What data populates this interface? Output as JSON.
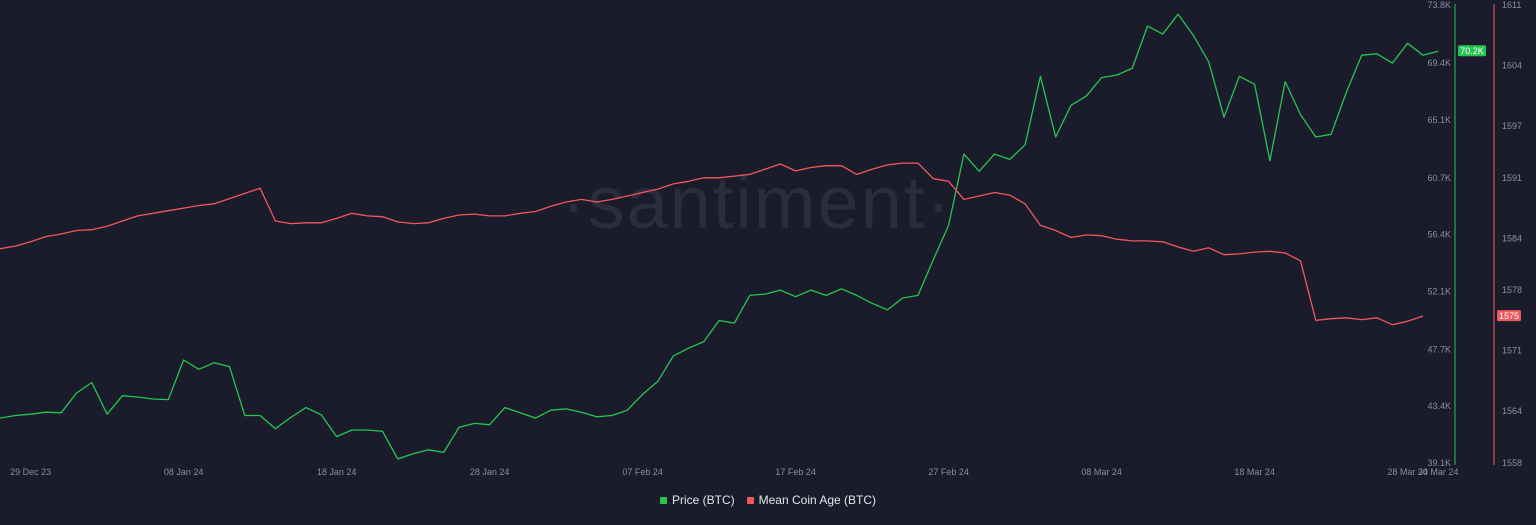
{
  "watermark": "·santiment·",
  "chart_data": {
    "type": "line",
    "x_tick_labels": [
      "29 Dec 23",
      "08 Jan 24",
      "18 Jan 24",
      "28 Jan 24",
      "07 Feb 24",
      "17 Feb 24",
      "27 Feb 24",
      "08 Mar 24",
      "18 Mar 24",
      "28 Mar 24",
      "30 Mar 24"
    ],
    "x_range": [
      "2023-12-27",
      "2024-03-30"
    ],
    "grid": false,
    "legend_position": "bottom-center",
    "series": [
      {
        "name": "Price (BTC)",
        "color": "#26c451",
        "axis": "left",
        "last_value_label": "70.2K",
        "points": [
          [
            "2023-12-27",
            42500
          ],
          [
            "2023-12-28",
            42700
          ],
          [
            "2023-12-29",
            42800
          ],
          [
            "2023-12-30",
            42950
          ],
          [
            "2023-12-31",
            42900
          ],
          [
            "2024-01-01",
            44400
          ],
          [
            "2024-01-02",
            45200
          ],
          [
            "2024-01-03",
            42800
          ],
          [
            "2024-01-04",
            44200
          ],
          [
            "2024-01-05",
            44100
          ],
          [
            "2024-01-06",
            43950
          ],
          [
            "2024-01-07",
            43900
          ],
          [
            "2024-01-08",
            46900
          ],
          [
            "2024-01-09",
            46200
          ],
          [
            "2024-01-10",
            46700
          ],
          [
            "2024-01-11",
            46400
          ],
          [
            "2024-01-12",
            42700
          ],
          [
            "2024-01-13",
            42700
          ],
          [
            "2024-01-14",
            41700
          ],
          [
            "2024-01-15",
            42550
          ],
          [
            "2024-01-16",
            43300
          ],
          [
            "2024-01-17",
            42750
          ],
          [
            "2024-01-18",
            41100
          ],
          [
            "2024-01-19",
            41600
          ],
          [
            "2024-01-20",
            41600
          ],
          [
            "2024-01-21",
            41500
          ],
          [
            "2024-01-22",
            39400
          ],
          [
            "2024-01-23",
            39800
          ],
          [
            "2024-01-24",
            40100
          ],
          [
            "2024-01-25",
            39900
          ],
          [
            "2024-01-26",
            41800
          ],
          [
            "2024-01-27",
            42100
          ],
          [
            "2024-01-28",
            42000
          ],
          [
            "2024-01-29",
            43300
          ],
          [
            "2024-01-30",
            42900
          ],
          [
            "2024-01-31",
            42500
          ],
          [
            "2024-02-01",
            43100
          ],
          [
            "2024-02-02",
            43200
          ],
          [
            "2024-02-03",
            42950
          ],
          [
            "2024-02-04",
            42600
          ],
          [
            "2024-02-05",
            42700
          ],
          [
            "2024-02-06",
            43100
          ],
          [
            "2024-02-07",
            44300
          ],
          [
            "2024-02-08",
            45300
          ],
          [
            "2024-02-09",
            47200
          ],
          [
            "2024-02-10",
            47800
          ],
          [
            "2024-02-11",
            48300
          ],
          [
            "2024-02-12",
            49900
          ],
          [
            "2024-02-13",
            49700
          ],
          [
            "2024-02-14",
            51800
          ],
          [
            "2024-02-15",
            51900
          ],
          [
            "2024-02-16",
            52200
          ],
          [
            "2024-02-17",
            51700
          ],
          [
            "2024-02-18",
            52200
          ],
          [
            "2024-02-19",
            51800
          ],
          [
            "2024-02-20",
            52300
          ],
          [
            "2024-02-21",
            51800
          ],
          [
            "2024-02-22",
            51200
          ],
          [
            "2024-02-23",
            50700
          ],
          [
            "2024-02-24",
            51600
          ],
          [
            "2024-02-25",
            51800
          ],
          [
            "2024-02-26",
            54500
          ],
          [
            "2024-02-27",
            57100
          ],
          [
            "2024-02-28",
            62500
          ],
          [
            "2024-02-29",
            61200
          ],
          [
            "2024-03-01",
            62500
          ],
          [
            "2024-03-02",
            62100
          ],
          [
            "2024-03-03",
            63200
          ],
          [
            "2024-03-04",
            68400
          ],
          [
            "2024-03-05",
            63800
          ],
          [
            "2024-03-06",
            66200
          ],
          [
            "2024-03-07",
            66900
          ],
          [
            "2024-03-08",
            68300
          ],
          [
            "2024-03-09",
            68500
          ],
          [
            "2024-03-10",
            69000
          ],
          [
            "2024-03-11",
            72200
          ],
          [
            "2024-03-12",
            71600
          ],
          [
            "2024-03-13",
            73100
          ],
          [
            "2024-03-14",
            71500
          ],
          [
            "2024-03-15",
            69500
          ],
          [
            "2024-03-16",
            65300
          ],
          [
            "2024-03-17",
            68400
          ],
          [
            "2024-03-18",
            67800
          ],
          [
            "2024-03-19",
            62000
          ],
          [
            "2024-03-20",
            68000
          ],
          [
            "2024-03-21",
            65500
          ],
          [
            "2024-03-22",
            63800
          ],
          [
            "2024-03-23",
            64000
          ],
          [
            "2024-03-24",
            67200
          ],
          [
            "2024-03-25",
            70000
          ],
          [
            "2024-03-26",
            70100
          ],
          [
            "2024-03-27",
            69400
          ],
          [
            "2024-03-28",
            70900
          ],
          [
            "2024-03-29",
            70000
          ],
          [
            "2024-03-30",
            70300
          ]
        ]
      },
      {
        "name": "Mean Coin Age (BTC)",
        "color": "#f0575c",
        "axis": "right",
        "last_value_label": "1575",
        "points": [
          [
            "2023-12-27",
            1582.8
          ],
          [
            "2023-12-28",
            1583.1
          ],
          [
            "2023-12-29",
            1583.6
          ],
          [
            "2023-12-30",
            1584.2
          ],
          [
            "2023-12-31",
            1584.5
          ],
          [
            "2024-01-01",
            1584.9
          ],
          [
            "2024-01-02",
            1585.0
          ],
          [
            "2024-01-03",
            1585.4
          ],
          [
            "2024-01-04",
            1586.0
          ],
          [
            "2024-01-05",
            1586.6
          ],
          [
            "2024-01-06",
            1586.9
          ],
          [
            "2024-01-07",
            1587.2
          ],
          [
            "2024-01-08",
            1587.5
          ],
          [
            "2024-01-09",
            1587.8
          ],
          [
            "2024-01-10",
            1588.0
          ],
          [
            "2024-01-11",
            1588.6
          ],
          [
            "2024-01-12",
            1589.2
          ],
          [
            "2024-01-13",
            1589.8
          ],
          [
            "2024-01-14",
            1586.0
          ],
          [
            "2024-01-15",
            1585.7
          ],
          [
            "2024-01-16",
            1585.8
          ],
          [
            "2024-01-17",
            1585.8
          ],
          [
            "2024-01-18",
            1586.3
          ],
          [
            "2024-01-19",
            1586.9
          ],
          [
            "2024-01-20",
            1586.6
          ],
          [
            "2024-01-21",
            1586.5
          ],
          [
            "2024-01-22",
            1585.9
          ],
          [
            "2024-01-23",
            1585.7
          ],
          [
            "2024-01-24",
            1585.8
          ],
          [
            "2024-01-25",
            1586.3
          ],
          [
            "2024-01-26",
            1586.7
          ],
          [
            "2024-01-27",
            1586.8
          ],
          [
            "2024-01-28",
            1586.6
          ],
          [
            "2024-01-29",
            1586.6
          ],
          [
            "2024-01-30",
            1586.9
          ],
          [
            "2024-01-31",
            1587.1
          ],
          [
            "2024-02-01",
            1587.7
          ],
          [
            "2024-02-02",
            1588.2
          ],
          [
            "2024-02-03",
            1588.5
          ],
          [
            "2024-02-04",
            1588.2
          ],
          [
            "2024-02-05",
            1588.5
          ],
          [
            "2024-02-06",
            1588.9
          ],
          [
            "2024-02-07",
            1589.3
          ],
          [
            "2024-02-08",
            1589.7
          ],
          [
            "2024-02-09",
            1590.3
          ],
          [
            "2024-02-10",
            1590.6
          ],
          [
            "2024-02-11",
            1591.0
          ],
          [
            "2024-02-12",
            1591.0
          ],
          [
            "2024-02-13",
            1591.2
          ],
          [
            "2024-02-14",
            1591.4
          ],
          [
            "2024-02-15",
            1592.0
          ],
          [
            "2024-02-16",
            1592.6
          ],
          [
            "2024-02-17",
            1591.8
          ],
          [
            "2024-02-18",
            1592.2
          ],
          [
            "2024-02-19",
            1592.4
          ],
          [
            "2024-02-20",
            1592.4
          ],
          [
            "2024-02-21",
            1591.4
          ],
          [
            "2024-02-22",
            1592.0
          ],
          [
            "2024-02-23",
            1592.5
          ],
          [
            "2024-02-24",
            1592.7
          ],
          [
            "2024-02-25",
            1592.7
          ],
          [
            "2024-02-26",
            1590.9
          ],
          [
            "2024-02-27",
            1590.6
          ],
          [
            "2024-02-28",
            1588.5
          ],
          [
            "2024-02-29",
            1588.9
          ],
          [
            "2024-03-01",
            1589.3
          ],
          [
            "2024-03-02",
            1589.0
          ],
          [
            "2024-03-03",
            1588.0
          ],
          [
            "2024-03-04",
            1585.5
          ],
          [
            "2024-03-05",
            1584.9
          ],
          [
            "2024-03-06",
            1584.1
          ],
          [
            "2024-03-07",
            1584.4
          ],
          [
            "2024-03-08",
            1584.3
          ],
          [
            "2024-03-09",
            1583.9
          ],
          [
            "2024-03-10",
            1583.7
          ],
          [
            "2024-03-11",
            1583.7
          ],
          [
            "2024-03-12",
            1583.6
          ],
          [
            "2024-03-13",
            1583.0
          ],
          [
            "2024-03-14",
            1582.5
          ],
          [
            "2024-03-15",
            1582.9
          ],
          [
            "2024-03-16",
            1582.1
          ],
          [
            "2024-03-17",
            1582.2
          ],
          [
            "2024-03-18",
            1582.4
          ],
          [
            "2024-03-19",
            1582.5
          ],
          [
            "2024-03-20",
            1582.3
          ],
          [
            "2024-03-21",
            1581.4
          ],
          [
            "2024-03-22",
            1574.5
          ],
          [
            "2024-03-23",
            1574.7
          ],
          [
            "2024-03-24",
            1574.8
          ],
          [
            "2024-03-25",
            1574.6
          ],
          [
            "2024-03-26",
            1574.8
          ],
          [
            "2024-03-27",
            1574.0
          ],
          [
            "2024-03-28",
            1574.4
          ],
          [
            "2024-03-29",
            1575.0
          ]
        ]
      }
    ],
    "y_left": {
      "ticks": [
        39100,
        43400,
        47700,
        52100,
        56400,
        60700,
        65100,
        69400,
        73800
      ],
      "tick_labels": [
        "39.1K",
        "43.4K",
        "47.7K",
        "52.1K",
        "56.4K",
        "60.7K",
        "65.1K",
        "69.4K",
        "73.8K"
      ],
      "range": [
        39100,
        73800
      ]
    },
    "y_right": {
      "ticks": [
        1558,
        1564,
        1571,
        1578,
        1584,
        1591,
        1597,
        1604,
        1611
      ],
      "tick_labels": [
        "1558",
        "1564",
        "1571",
        "1578",
        "1584",
        "1591",
        "1597",
        "1604",
        "1611"
      ],
      "range": [
        1558,
        1611
      ]
    }
  }
}
